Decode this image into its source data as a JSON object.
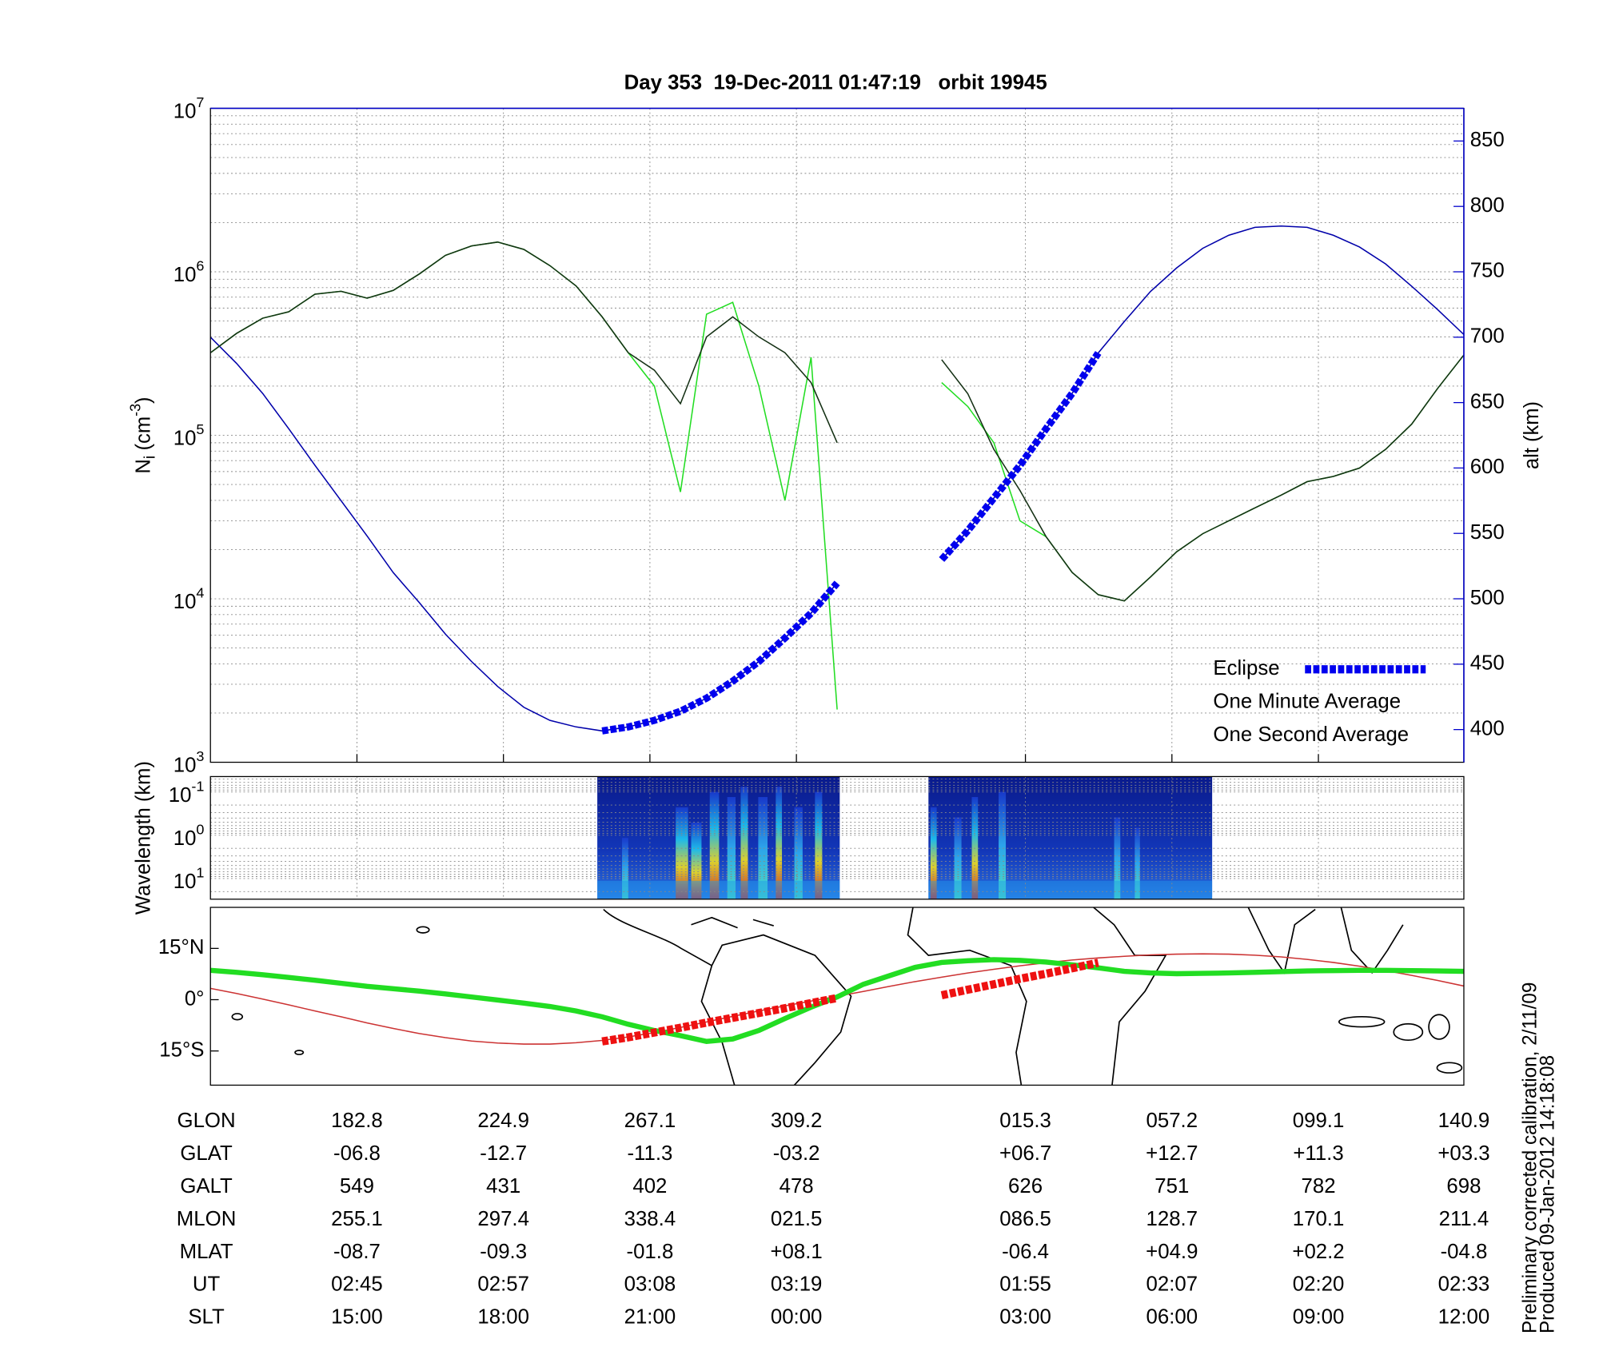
{
  "chart_data": [
    {
      "type": "line",
      "title": "Day 353  19-Dec-2011 01:47:19   orbit 19945",
      "ylabel": {
        "base": "N",
        "sub": "i",
        "unit": "(cm",
        "sup": "-3",
        "close": ")"
      },
      "y2label": "alt (km)",
      "log": true,
      "grid": true,
      "legend": "lower right",
      "ylim": [
        1000,
        10000000
      ],
      "yticks": [
        {
          "value": 1000,
          "label": "10",
          "exponent": "3"
        },
        {
          "value": 10000,
          "label": "10",
          "exponent": "4"
        },
        {
          "value": 100000,
          "label": "10",
          "exponent": "5"
        },
        {
          "value": 1000000,
          "label": "10",
          "exponent": "6"
        },
        {
          "value": 10000000,
          "label": "10",
          "exponent": "7"
        }
      ],
      "y2lim": [
        375,
        875
      ],
      "y2ticks": [
        400,
        450,
        500,
        550,
        600,
        650,
        700,
        750,
        800,
        850
      ],
      "series": [
        {
          "name": "Eclipse",
          "color": "#0000ee",
          "axis": "y2",
          "dashed": true,
          "values": [
            null,
            null,
            null,
            null,
            null,
            null,
            null,
            null,
            null,
            null,
            null,
            null,
            null,
            null,
            null,
            399,
            402,
            407,
            414,
            424,
            437,
            452,
            470,
            489,
            512,
            null,
            null,
            null,
            530,
            552,
            577,
            602,
            630,
            657,
            688,
            null,
            null,
            null,
            null,
            null,
            null,
            null,
            null,
            null,
            null,
            null,
            null,
            null,
            null
          ]
        },
        {
          "name": "One Minute Average",
          "color": "#143014",
          "values": [
            320000,
            420000,
            520000,
            570000,
            730000,
            760000,
            690000,
            770000,
            970000,
            1260000,
            1440000,
            1520000,
            1370000,
            1090000,
            820000,
            530000,
            320000,
            250000,
            156000,
            400000,
            530000,
            400000,
            320000,
            210000,
            90000,
            null,
            null,
            null,
            290000,
            180000,
            82000,
            46000,
            24000,
            14500,
            10600,
            9700,
            13600,
            19400,
            25000,
            30000,
            36000,
            43000,
            52000,
            56000,
            63000,
            82000,
            117000,
            194000,
            310000
          ]
        },
        {
          "name": "One Second Average",
          "color": "#22dd22",
          "values": [
            320000,
            420000,
            520000,
            570000,
            730000,
            760000,
            690000,
            770000,
            970000,
            1260000,
            1440000,
            1520000,
            1370000,
            1090000,
            820000,
            530000,
            320000,
            200000,
            45000,
            550000,
            650000,
            200000,
            40000,
            300000,
            2100,
            null,
            null,
            null,
            210000,
            150000,
            90000,
            30000,
            24000,
            14500,
            10600,
            9700,
            13600,
            19400,
            25000,
            30000,
            36000,
            43000,
            52000,
            56000,
            63000,
            82000,
            117000,
            194000,
            310000
          ]
        },
        {
          "color": "#0000aa",
          "axis": "y2",
          "values": [
            700,
            680,
            657,
            630,
            602,
            575,
            548,
            520,
            497,
            473,
            452,
            433,
            417,
            407,
            402,
            399,
            402,
            407,
            414,
            424,
            437,
            452,
            470,
            489,
            512,
            null,
            null,
            null,
            530,
            552,
            577,
            602,
            630,
            657,
            688,
            712,
            735,
            753,
            768,
            778,
            784,
            785,
            784,
            778,
            769,
            756,
            739,
            721,
            702
          ]
        }
      ]
    },
    {
      "type": "spectrogram",
      "ylabel": "Wavelength (km)",
      "log": true,
      "reversed": true,
      "grid": true,
      "ylim": [
        0.044,
        30
      ],
      "yticks": [
        {
          "value": 0.1,
          "label": "10",
          "exponent": "-1"
        },
        {
          "value": 1,
          "label": "10",
          "exponent": "0"
        },
        {
          "value": 10,
          "label": "10",
          "exponent": "1"
        }
      ]
    },
    {
      "type": "line",
      "ylim": [
        -25,
        27
      ],
      "yticks": [
        {
          "value": 15,
          "label": "15°N"
        },
        {
          "value": 0,
          "label": "0°"
        },
        {
          "value": -15,
          "label": "15°S"
        }
      ],
      "series": [
        {
          "color": "#cc3333",
          "values": [
            3.3,
            1.8,
            0.2,
            -1.5,
            -3.3,
            -5.0,
            -6.8,
            -8.4,
            -9.9,
            -11.1,
            -12.1,
            -12.7,
            -13.0,
            -13.0,
            -12.6,
            -11.9,
            -10.9,
            -9.6,
            -8.1,
            -6.5,
            -4.9,
            -3.3,
            -1.8,
            -0.4,
            1.0,
            2.4,
            3.9,
            5.3,
            6.6,
            7.8,
            8.9,
            9.9,
            10.8,
            11.6,
            12.2,
            12.7,
            13.1,
            13.3,
            13.4,
            13.3,
            13.0,
            12.5,
            11.8,
            10.9,
            9.8,
            8.5,
            7.1,
            5.6,
            4.0
          ]
        },
        {
          "color": "#22dd22",
          "style": "thick",
          "values": [
            8.6,
            8.0,
            7.3,
            6.5,
            5.7,
            4.8,
            3.9,
            3.2,
            2.5,
            1.7,
            0.8,
            -0.1,
            -1.0,
            -2.0,
            -3.3,
            -5.0,
            -7.2,
            -9.0,
            -10.5,
            -12.2,
            -11.5,
            -9.0,
            -5.5,
            -2.2,
            0.8,
            4.5,
            7.0,
            9.5,
            10.9,
            11.4,
            11.7,
            11.5,
            11.0,
            10.2,
            9.3,
            8.3,
            7.8,
            7.6,
            7.7,
            7.8,
            8.0,
            8.2,
            8.4,
            8.5,
            8.6,
            8.6,
            8.5,
            8.4,
            8.3
          ]
        },
        {
          "color": "#ee1111",
          "dashed": true,
          "values": [
            null,
            null,
            null,
            null,
            null,
            null,
            null,
            null,
            null,
            null,
            null,
            null,
            null,
            null,
            null,
            -12.2,
            -11.0,
            -9.6,
            -8.2,
            -6.7,
            -5.3,
            -3.9,
            -2.5,
            -1.0,
            0.5,
            null,
            null,
            null,
            1.3,
            2.9,
            4.5,
            6.1,
            7.6,
            9.2,
            10.8,
            null,
            null,
            null,
            null,
            null,
            null,
            null,
            null,
            null,
            null,
            null,
            null,
            null,
            null
          ]
        }
      ]
    }
  ],
  "table": {
    "rows": [
      {
        "label": "GLON",
        "values": [
          "182.8",
          "224.9",
          "267.1",
          "309.2",
          "015.3",
          "057.2",
          "099.1",
          "140.9"
        ]
      },
      {
        "label": "GLAT",
        "values": [
          "-06.8",
          "-12.7",
          "-11.3",
          "-03.2",
          "+06.7",
          "+12.7",
          "+11.3",
          "+03.3"
        ]
      },
      {
        "label": "GALT",
        "values": [
          "549",
          "431",
          "402",
          "478",
          "626",
          "751",
          "782",
          "698"
        ]
      },
      {
        "label": "MLON",
        "values": [
          "255.1",
          "297.4",
          "338.4",
          "021.5",
          "086.5",
          "128.7",
          "170.1",
          "211.4"
        ]
      },
      {
        "label": "MLAT",
        "values": [
          "-08.7",
          "-09.3",
          "-01.8",
          "+08.1",
          "-06.4",
          "+04.9",
          "+02.2",
          "-04.8"
        ]
      },
      {
        "label": "UT",
        "values": [
          "02:45",
          "02:57",
          "03:08",
          "03:19",
          "01:55",
          "02:07",
          "02:20",
          "02:33"
        ]
      },
      {
        "label": "SLT",
        "values": [
          "15:00",
          "18:00",
          "21:00",
          "00:00",
          "03:00",
          "06:00",
          "09:00",
          "12:00"
        ]
      }
    ]
  },
  "notes": [
    "Preliminary corrected calibration, 2/11/09",
    "Produced 09-Jan-2012 14:18:08"
  ]
}
